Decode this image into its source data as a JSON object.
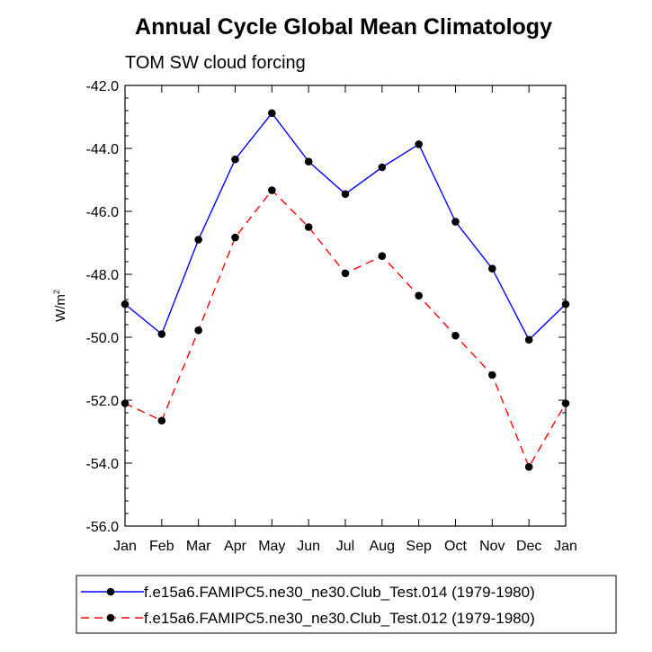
{
  "chart_data": {
    "type": "line",
    "title": "Annual Cycle Global Mean Climatology",
    "subtitle": "TOM SW cloud forcing",
    "ylabel": "W/m",
    "ylabel_superscript": "2",
    "xlabel": "",
    "ylim": [
      -56.0,
      -42.0
    ],
    "yticks": [
      "-42.0",
      "-44.0",
      "-46.0",
      "-48.0",
      "-50.0",
      "-52.0",
      "-54.0",
      "-56.0"
    ],
    "categories": [
      "Jan",
      "Feb",
      "Mar",
      "Apr",
      "May",
      "Jun",
      "Jul",
      "Aug",
      "Sep",
      "Oct",
      "Nov",
      "Dec",
      "Jan"
    ],
    "series": [
      {
        "name": "f.e15a6.FAMIPC5.ne30_ne30.Club_Test.014 (1979-1980)",
        "color": "#0000ff",
        "dash": "solid",
        "values": [
          -48.95,
          -49.9,
          -46.9,
          -44.35,
          -42.88,
          -44.42,
          -45.45,
          -44.6,
          -43.87,
          -46.33,
          -47.82,
          -50.08,
          -48.95
        ]
      },
      {
        "name": "f.e15a6.FAMIPC5.ne30_ne30.Club_Test.012 (1979-1980)",
        "color": "#ff0000",
        "dash": "dashed",
        "values": [
          -52.1,
          -52.65,
          -49.78,
          -46.83,
          -45.33,
          -46.5,
          -47.97,
          -47.42,
          -48.68,
          -49.95,
          -51.2,
          -54.12,
          -52.1
        ]
      }
    ],
    "legend_position": "bottom"
  }
}
